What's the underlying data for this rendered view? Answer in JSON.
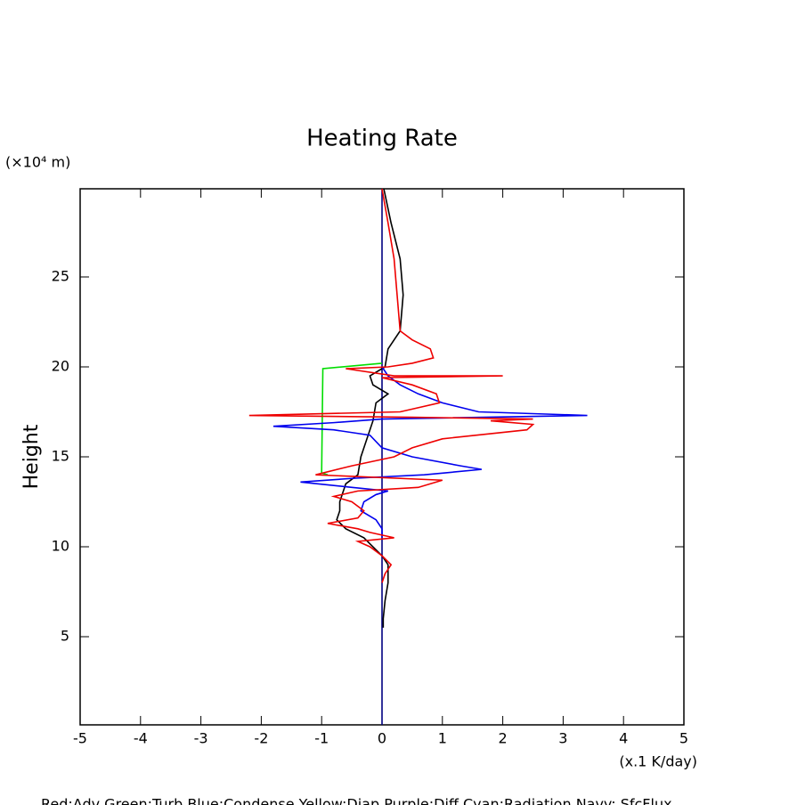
{
  "chart_data": {
    "type": "line",
    "title": "Heating Rate",
    "y_label": "Height",
    "y_unit": "(×10⁴ m)",
    "x_unit": "(x.1 K/day)",
    "legend_text": "Red:Adv  Green:Turb  Blue:Condense  Yellow:Diap  Purple:Diff  Cyan:Radiation  Navy: SfcFlux",
    "xlim": [
      -5,
      5
    ],
    "xticks": [
      -5,
      -4,
      -3,
      -2,
      -1,
      0,
      1,
      2,
      3,
      4,
      5
    ],
    "ylim": [
      0.1,
      29.9
    ],
    "yticks": [
      5,
      10,
      15,
      20,
      25
    ],
    "series": [
      {
        "color": "#000080",
        "x": [
          0,
          0
        ],
        "values": [
          0.1,
          29.9
        ]
      },
      {
        "color": "#000000",
        "x": [
          0.03,
          0.15,
          0.3,
          0.35,
          0.3,
          0.1,
          0.05,
          -0.2,
          -0.15,
          0.1,
          -0.1,
          -0.15,
          -0.25,
          -0.35,
          -0.4,
          -0.6,
          -0.65,
          -0.7,
          -0.7,
          -0.75,
          -0.6,
          -0.3,
          -0.15,
          0,
          0.1,
          0.1,
          0.05,
          0.02,
          0.02
        ],
        "values": [
          29.9,
          28,
          26,
          24,
          22,
          21,
          20,
          19.5,
          19,
          18.5,
          18,
          17,
          16,
          15,
          14,
          13.5,
          13,
          12.5,
          12,
          11.5,
          11,
          10.5,
          10,
          9.5,
          9,
          8,
          7,
          6,
          5.5
        ]
      },
      {
        "color": "#00dd00",
        "x": [
          0,
          -0.98,
          -1.0,
          -0.9
        ],
        "values": [
          20.2,
          19.9,
          14.1,
          14.0
        ]
      },
      {
        "color": "#0000ee",
        "x": [
          0,
          0.1,
          0.3,
          0.6,
          1.0,
          1.6,
          3.4,
          0,
          -0.8,
          -1.8,
          -0.8,
          -0.2,
          0,
          0.5,
          1.3,
          1.65,
          0.7,
          -0.5,
          -1.35,
          -0.5,
          0.1,
          -0.1,
          -0.3,
          -0.35,
          -0.1,
          0,
          0
        ],
        "values": [
          20,
          19.5,
          19,
          18.5,
          18,
          17.5,
          17.3,
          17.1,
          16.9,
          16.7,
          16.5,
          16.2,
          15.5,
          15,
          14.5,
          14.3,
          14,
          13.8,
          13.6,
          13.3,
          13.1,
          12.9,
          12.5,
          12,
          11.5,
          11,
          10.5
        ]
      },
      {
        "color": "#ee0000",
        "x": [
          0,
          0.1,
          0.2,
          0.25,
          0.3,
          0.5,
          0.8,
          0.85,
          0.5,
          0.1,
          -0.6,
          0.2,
          2.0,
          0,
          0.5,
          0.9,
          0.95,
          0.3,
          -2.2,
          0.5,
          2.5,
          1.8,
          2.5,
          2.4,
          1.0,
          0.5,
          0.2,
          -0.5,
          -1.1,
          1.0,
          0.6,
          -0.4,
          -0.8,
          -0.5,
          -0.3,
          -0.4,
          -0.9,
          -0.4,
          -0.2,
          0.2,
          -0.4,
          -0.2,
          0,
          0.15,
          0.05,
          0
        ],
        "values": [
          29.9,
          28,
          26,
          24,
          22,
          21.5,
          21,
          20.5,
          20.2,
          20,
          19.9,
          19.5,
          19.5,
          19.4,
          19,
          18.5,
          18,
          17.5,
          17.3,
          17.2,
          17.1,
          17,
          16.8,
          16.5,
          16,
          15.5,
          15,
          14.5,
          14,
          13.7,
          13.3,
          13.1,
          12.8,
          12.5,
          12,
          11.6,
          11.3,
          11,
          10.8,
          10.5,
          10.3,
          10,
          9.5,
          9,
          8.5,
          8
        ]
      }
    ]
  }
}
